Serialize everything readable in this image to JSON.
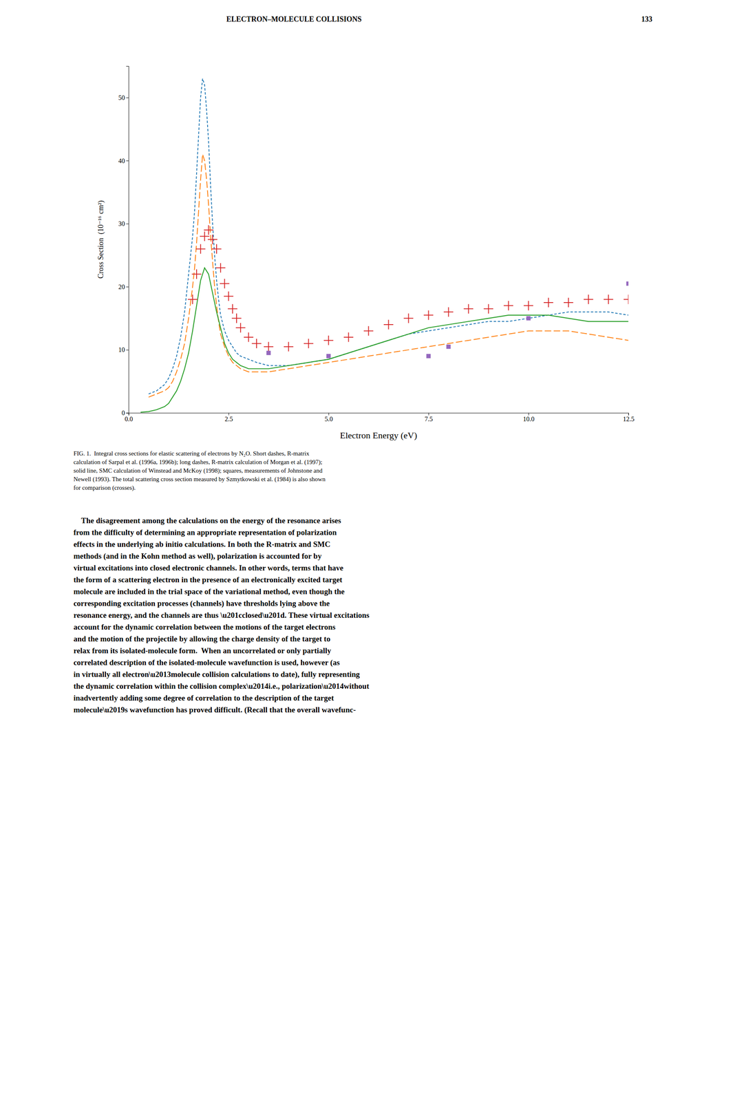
{
  "chart_data": {
    "type": "line",
    "title": "ELECTRON–MOLECULE COLLISIONS",
    "xlabel": "Electron Energy (eV)",
    "ylabel": "Cross Section  (10⁻¹⁶ cm²)",
    "xlim": [
      0.0,
      12.5
    ],
    "ylim": [
      0,
      55
    ],
    "xticks": [
      {
        "value": 0.0,
        "label": "0.0"
      },
      2.5,
      {
        "value": 5.0,
        "label": "5.0"
      },
      7.5,
      {
        "value": 10.0,
        "label": "10.0"
      },
      12.5
    ],
    "yticks": [
      0,
      10,
      20,
      30,
      40,
      50
    ],
    "grid": false,
    "series": [
      {
        "type": "line",
        "line_style": "short-dashed",
        "x": [
          0.5,
          0.7,
          0.9,
          1.0,
          1.1,
          1.2,
          1.3,
          1.4,
          1.5,
          1.6,
          1.65,
          1.7,
          1.75,
          1.8,
          1.85,
          1.9,
          1.95,
          2.0,
          2.05,
          2.1,
          2.15,
          2.2,
          2.25,
          2.3,
          2.4,
          2.5,
          2.6,
          2.7,
          2.8,
          3.0,
          3.2,
          3.5,
          4.0,
          4.5,
          5.0,
          5.5,
          6.0,
          6.5,
          7.0,
          7.5,
          8.0,
          8.5,
          9.0,
          9.5,
          10.0,
          10.5,
          11.0,
          11.5,
          12.0,
          12.5
        ],
        "values": [
          3.0,
          3.5,
          4.5,
          5.5,
          7.0,
          9.0,
          12.0,
          16.0,
          22.0,
          28.0,
          32.0,
          38.0,
          44.0,
          50.0,
          53.0,
          52.0,
          48.0,
          43.0,
          36.0,
          30.0,
          25.0,
          21.0,
          18.0,
          15.5,
          13.0,
          11.5,
          10.5,
          9.5,
          9.0,
          8.5,
          8.0,
          7.5,
          7.5,
          8.0,
          8.5,
          9.5,
          10.5,
          11.5,
          12.5,
          13.0,
          13.5,
          14.0,
          14.5,
          14.5,
          15.0,
          15.5,
          16.0,
          16.0,
          16.0,
          15.5
        ]
      },
      {
        "type": "line",
        "line_style": "long-dashed",
        "x": [
          0.5,
          0.7,
          0.9,
          1.0,
          1.1,
          1.2,
          1.3,
          1.4,
          1.5,
          1.6,
          1.65,
          1.7,
          1.75,
          1.8,
          1.85,
          1.9,
          1.95,
          2.0,
          2.05,
          2.1,
          2.15,
          2.2,
          2.25,
          2.3,
          2.4,
          2.5,
          2.6,
          2.7,
          2.8,
          3.0,
          3.2,
          3.5,
          4.0,
          4.5,
          5.0,
          5.5,
          6.0,
          6.5,
          7.0,
          7.5,
          8.0,
          8.5,
          9.0,
          9.5,
          10.0,
          10.5,
          11.0,
          11.5,
          12.0,
          12.5
        ],
        "values": [
          2.5,
          3.0,
          3.5,
          4.0,
          5.0,
          6.5,
          8.5,
          11.0,
          15.0,
          20.0,
          23.0,
          27.0,
          32.0,
          37.0,
          41.0,
          40.0,
          37.0,
          33.0,
          28.0,
          24.0,
          20.0,
          17.0,
          14.5,
          12.5,
          10.5,
          9.0,
          8.0,
          7.5,
          7.0,
          6.5,
          6.5,
          6.5,
          7.0,
          7.5,
          8.0,
          8.5,
          9.0,
          9.5,
          10.0,
          10.5,
          11.0,
          11.5,
          12.0,
          12.5,
          13.0,
          13.0,
          13.0,
          12.5,
          12.0,
          11.5
        ]
      },
      {
        "type": "line",
        "line_style": "solid",
        "x": [
          0.3,
          0.5,
          0.7,
          0.9,
          1.0,
          1.1,
          1.2,
          1.3,
          1.4,
          1.5,
          1.6,
          1.7,
          1.8,
          1.9,
          2.0,
          2.1,
          2.2,
          2.3,
          2.4,
          2.5,
          2.6,
          2.7,
          2.8,
          3.0,
          3.2,
          3.5,
          4.0,
          4.5,
          5.0,
          5.5,
          6.0,
          6.5,
          7.0,
          7.5,
          8.0,
          8.5,
          9.0,
          9.5,
          10.0,
          10.5,
          11.0,
          11.5,
          12.0,
          12.5
        ],
        "values": [
          0.1,
          0.2,
          0.5,
          1.0,
          1.5,
          2.5,
          3.5,
          5.0,
          7.0,
          9.5,
          13.0,
          17.0,
          21.0,
          23.0,
          22.0,
          19.0,
          16.0,
          13.5,
          11.0,
          9.5,
          8.5,
          8.0,
          7.5,
          7.0,
          7.0,
          7.0,
          7.5,
          8.0,
          8.5,
          9.5,
          10.5,
          11.5,
          12.5,
          13.5,
          14.0,
          14.5,
          15.0,
          15.5,
          15.5,
          15.5,
          15.0,
          14.5,
          14.5,
          14.5
        ]
      },
      {
        "type": "scatter",
        "marker": "plus",
        "x": [
          1.6,
          1.7,
          1.8,
          1.9,
          2.0,
          2.1,
          2.2,
          2.3,
          2.4,
          2.5,
          2.6,
          2.7,
          2.8,
          3.0,
          3.2,
          3.5,
          4.0,
          4.5,
          5.0,
          5.5,
          6.0,
          6.5,
          7.0,
          7.5,
          8.0,
          8.5,
          9.0,
          9.5,
          10.0,
          10.5,
          11.0,
          11.5,
          12.0,
          12.5
        ],
        "values": [
          18.0,
          22.0,
          26.0,
          28.0,
          29.0,
          27.5,
          26.0,
          23.0,
          20.5,
          18.5,
          16.5,
          15.0,
          13.5,
          12.0,
          11.0,
          10.5,
          10.5,
          11.0,
          11.5,
          12.0,
          13.0,
          14.0,
          15.0,
          15.5,
          16.0,
          16.5,
          16.5,
          17.0,
          17.0,
          17.5,
          17.5,
          18.0,
          18.0,
          18.0
        ]
      },
      {
        "type": "scatter",
        "marker": "square",
        "x": [
          3.5,
          5.0,
          7.5,
          8.0,
          10.0,
          12.5
        ],
        "values": [
          9.5,
          9.0,
          9.0,
          10.5,
          15.0,
          20.5
        ]
      }
    ],
    "annotations": [
      [
        "133"
      ],
      [
        "FIG. 1.  Integral cross sections for elastic scattering of electrons by N₂O. Short dashes, R-matrix",
        "calculation of Sarpal et al. (1996a, 1996b); long dashes, R-matrix calculation of Morgan et al. (1997);",
        "solid line, SMC calculation of Winstead and McKoy (1998); squares, measurements of Johnstone and",
        "Newell (1993). The total scattering cross section measured by Szmytkowski et al. (1984) is also shown",
        "for comparison (crosses)."
      ],
      [
        "    The disagreement among the calculations on the energy of the resonance arises",
        "from the difficulty of determining an appropriate representation of polarization",
        "effects in the underlying ab initio calculations. In both the R-matrix and SMC",
        "methods (and in the Kohn method as well), polarization is accounted for by",
        "virtual excitations into closed electronic channels. In other words, terms that have",
        "the form of a scattering electron in the presence of an electronically excited target",
        "molecule are included in the trial space of the variational method, even though the",
        "corresponding excitation processes (channels) have thresholds lying above the",
        "resonance energy, and the channels are thus \\u201cclosed\\u201d. These virtual excitations",
        "account for the dynamic correlation between the motions of the target electrons",
        "and the motion of the projectile by allowing the charge density of the target to",
        "relax from its isolated-molecule form.  When an uncorrelated or only partially",
        "correlated description of the isolated-molecule wavefunction is used, however (as",
        "in virtually all electron\\u2013molecule collision calculations to date), fully representing",
        "the dynamic correlation within the collision complex\\u2014i.e., polarization\\u2014without",
        "inadvertently adding some degree of correlation to the description of the target",
        "molecule\\u2019s wavefunction has proved difficult. (Recall that the overall wavefunc-"
      ]
    ]
  }
}
